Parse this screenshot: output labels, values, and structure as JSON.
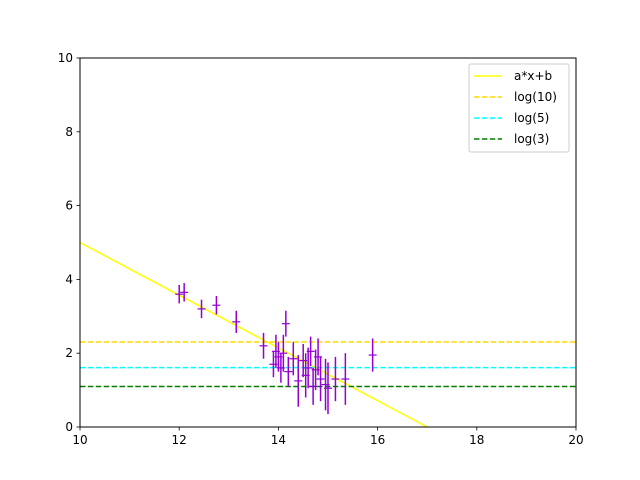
{
  "chart_data": {
    "type": "scatter",
    "title": "",
    "xlabel": "",
    "ylabel": "",
    "xlim": [
      10,
      20
    ],
    "ylim": [
      0,
      10
    ],
    "xticks": [
      10,
      12,
      14,
      16,
      18,
      20
    ],
    "yticks": [
      0,
      2,
      4,
      6,
      8,
      10
    ],
    "grid": false,
    "legend_position": "upper-right",
    "points": {
      "color": "#9400d3",
      "marker": "+",
      "data": [
        {
          "x": 12.0,
          "y": 3.6,
          "err": 0.25
        },
        {
          "x": 12.1,
          "y": 3.65,
          "err": 0.25
        },
        {
          "x": 12.45,
          "y": 3.2,
          "err": 0.25
        },
        {
          "x": 12.75,
          "y": 3.3,
          "err": 0.25
        },
        {
          "x": 13.15,
          "y": 2.85,
          "err": 0.3
        },
        {
          "x": 13.7,
          "y": 2.2,
          "err": 0.35
        },
        {
          "x": 13.9,
          "y": 1.7,
          "err": 0.35
        },
        {
          "x": 13.95,
          "y": 2.05,
          "err": 0.45
        },
        {
          "x": 14.0,
          "y": 1.9,
          "err": 0.4
        },
        {
          "x": 14.05,
          "y": 1.6,
          "err": 0.4
        },
        {
          "x": 14.1,
          "y": 2.0,
          "err": 0.5
        },
        {
          "x": 14.15,
          "y": 2.8,
          "err": 0.35
        },
        {
          "x": 14.2,
          "y": 1.5,
          "err": 0.4
        },
        {
          "x": 14.3,
          "y": 1.85,
          "err": 0.45
        },
        {
          "x": 14.4,
          "y": 1.25,
          "err": 0.7
        },
        {
          "x": 14.5,
          "y": 1.8,
          "err": 0.45
        },
        {
          "x": 14.55,
          "y": 1.4,
          "err": 0.6
        },
        {
          "x": 14.6,
          "y": 1.6,
          "err": 0.55
        },
        {
          "x": 14.65,
          "y": 2.05,
          "err": 0.4
        },
        {
          "x": 14.7,
          "y": 1.1,
          "err": 0.5
        },
        {
          "x": 14.75,
          "y": 1.55,
          "err": 0.55
        },
        {
          "x": 14.8,
          "y": 1.9,
          "err": 0.5
        },
        {
          "x": 14.85,
          "y": 1.3,
          "err": 0.6
        },
        {
          "x": 14.95,
          "y": 1.15,
          "err": 0.7
        },
        {
          "x": 15.0,
          "y": 1.05,
          "err": 0.7
        },
        {
          "x": 15.15,
          "y": 1.3,
          "err": 0.6
        },
        {
          "x": 15.35,
          "y": 1.3,
          "err": 0.7
        },
        {
          "x": 15.9,
          "y": 1.95,
          "err": 0.45
        }
      ]
    },
    "series": [
      {
        "name": "a*x+b",
        "type": "line",
        "style": "solid",
        "color": "#ffff00",
        "x": [
          10,
          17
        ],
        "y": [
          5.0,
          0.0
        ]
      },
      {
        "name": "log(10)",
        "type": "hline",
        "style": "dashed",
        "color": "#ffd700",
        "y": 2.302585
      },
      {
        "name": "log(5)",
        "type": "hline",
        "style": "dashed",
        "color": "#00ffff",
        "y": 1.609438
      },
      {
        "name": "log(3)",
        "type": "hline",
        "style": "dashed",
        "color": "#008000",
        "y": 1.098612
      }
    ]
  }
}
